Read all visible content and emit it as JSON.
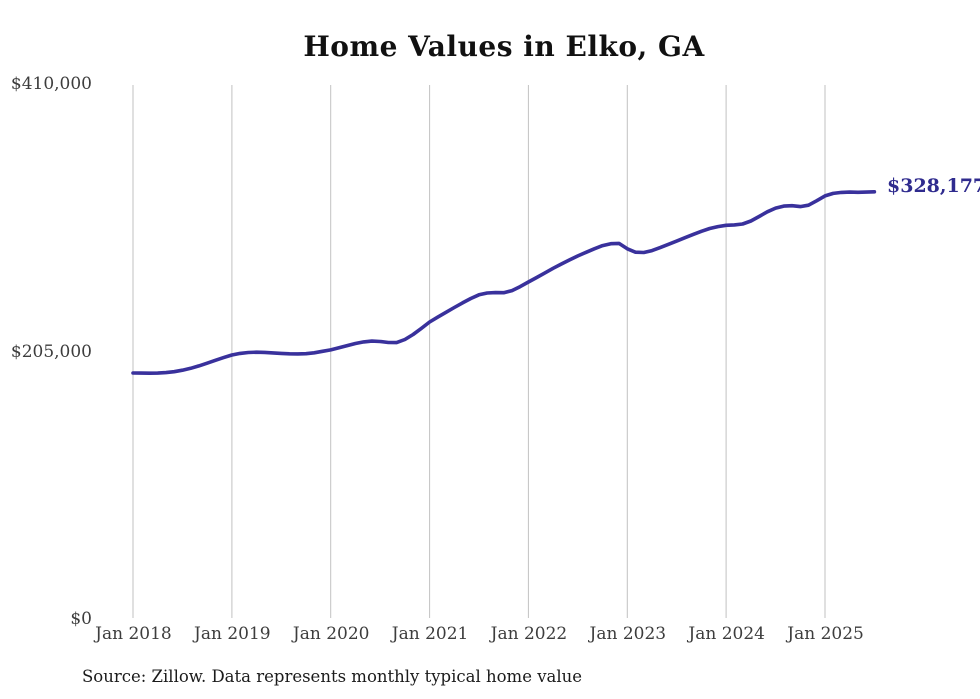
{
  "title": "Home Values in Elko, GA",
  "end_label": "$328,177",
  "source_note": "Source: Zillow. Data represents monthly typical home value",
  "colors": {
    "line": "#39319c",
    "grid": "#c2c2c2",
    "axis_text": "#3d3d3d",
    "title_text": "#111111",
    "end_label": "#2f2b8e",
    "source_text": "#1b1b1b"
  },
  "chart_data": {
    "type": "line",
    "title": "Home Values in Elko, GA",
    "xlabel": "",
    "ylabel": "",
    "legend": "none",
    "grid": "vertical-only",
    "ylim": [
      0,
      410000
    ],
    "y_tick_labels": [
      "$410,000",
      "$205,000",
      "$0"
    ],
    "y_tick_values": [
      410000,
      205000,
      0
    ],
    "x_tick_labels": [
      "Jan 2018",
      "Jan 2019",
      "Jan 2020",
      "Jan 2021",
      "Jan 2022",
      "Jan 2023",
      "Jan 2024",
      "Jan 2025"
    ],
    "x_start": "2018-01",
    "x_end": "2025-07",
    "x_interval": "month",
    "end_value": 328177,
    "series": [
      {
        "name": "Monthly typical home value",
        "values": [
          189300,
          189200,
          189100,
          189250,
          189600,
          190300,
          191400,
          192900,
          194700,
          196800,
          199000,
          201100,
          203100,
          204300,
          205000,
          205200,
          205100,
          204700,
          204300,
          204000,
          203900,
          204100,
          204800,
          205900,
          207000,
          208600,
          210300,
          211900,
          213100,
          213700,
          213400,
          212700,
          212600,
          215000,
          218800,
          223500,
          228400,
          232100,
          235800,
          239500,
          243000,
          246400,
          249200,
          250600,
          250900,
          250800,
          252400,
          255500,
          259000,
          262500,
          266000,
          269500,
          272800,
          276000,
          279000,
          281800,
          284500,
          286900,
          288400,
          288600,
          284500,
          281900,
          281600,
          283100,
          285400,
          287900,
          290400,
          293000,
          295500,
          297900,
          300000,
          301500,
          302500,
          302800,
          303500,
          305800,
          309200,
          312800,
          315700,
          317200,
          317500,
          316800,
          317900,
          321300,
          325000,
          326900,
          327700,
          327900,
          327800,
          327900,
          328177
        ]
      }
    ]
  }
}
